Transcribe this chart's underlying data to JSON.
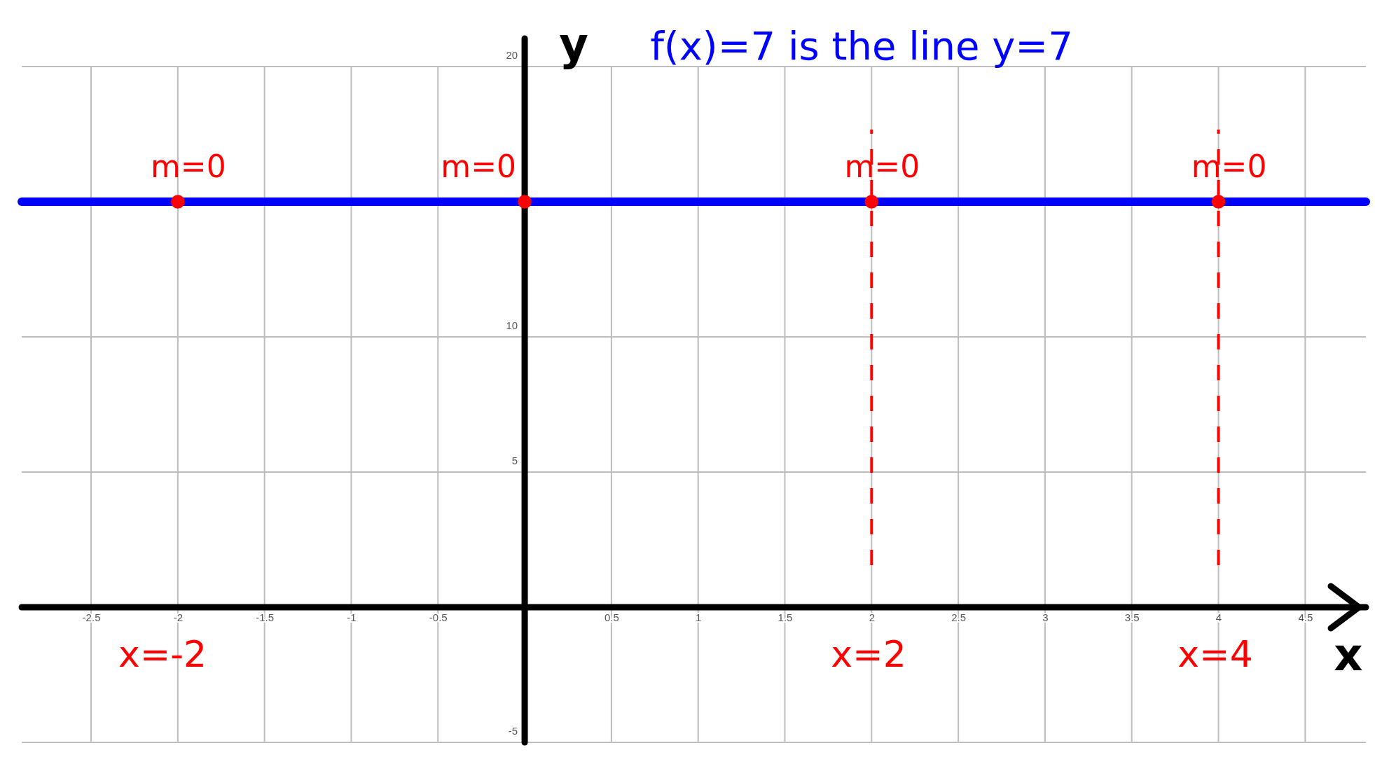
{
  "chart_data": {
    "type": "line",
    "title": "f(x)=7  is the line y=7",
    "xlabel": "x",
    "ylabel": "y",
    "xlim": [
      -2.9,
      4.85
    ],
    "ylim": [
      -5,
      20
    ],
    "xticks": [
      -2.5,
      -2,
      -1.5,
      -1,
      -0.5,
      0,
      0.5,
      1,
      1.5,
      2,
      2.5,
      3,
      3.5,
      4,
      4.5
    ],
    "yticks": [
      -5,
      5,
      10,
      {
        "value": 15,
        "label": null
      },
      20
    ],
    "grid": true,
    "series": [
      {
        "color": "#0000ff",
        "x": [
          -2.9,
          4.85
        ],
        "values": [
          15,
          15
        ]
      },
      {
        "type": "scatter",
        "color": "#ff0000",
        "marker": "circle",
        "x": [
          -2,
          0,
          2,
          4
        ],
        "values": [
          15,
          15,
          15,
          15
        ]
      }
    ],
    "ref_lines": [
      {
        "axis": "x",
        "value": 2,
        "color": "#ff0000",
        "line_style": "dashed"
      },
      {
        "axis": "x",
        "value": 4,
        "color": "#ff0000",
        "line_style": "dashed"
      }
    ],
    "annotations": [
      {
        "text": "m=0",
        "x": -2,
        "y": 15
      },
      {
        "text": "m=0",
        "x": 0,
        "y": 15
      },
      {
        "text": "m=0",
        "x": 2,
        "y": 15
      },
      {
        "text": "m=0",
        "x": 4,
        "y": 15
      },
      "x=-2",
      "x=2",
      "x=4"
    ]
  }
}
